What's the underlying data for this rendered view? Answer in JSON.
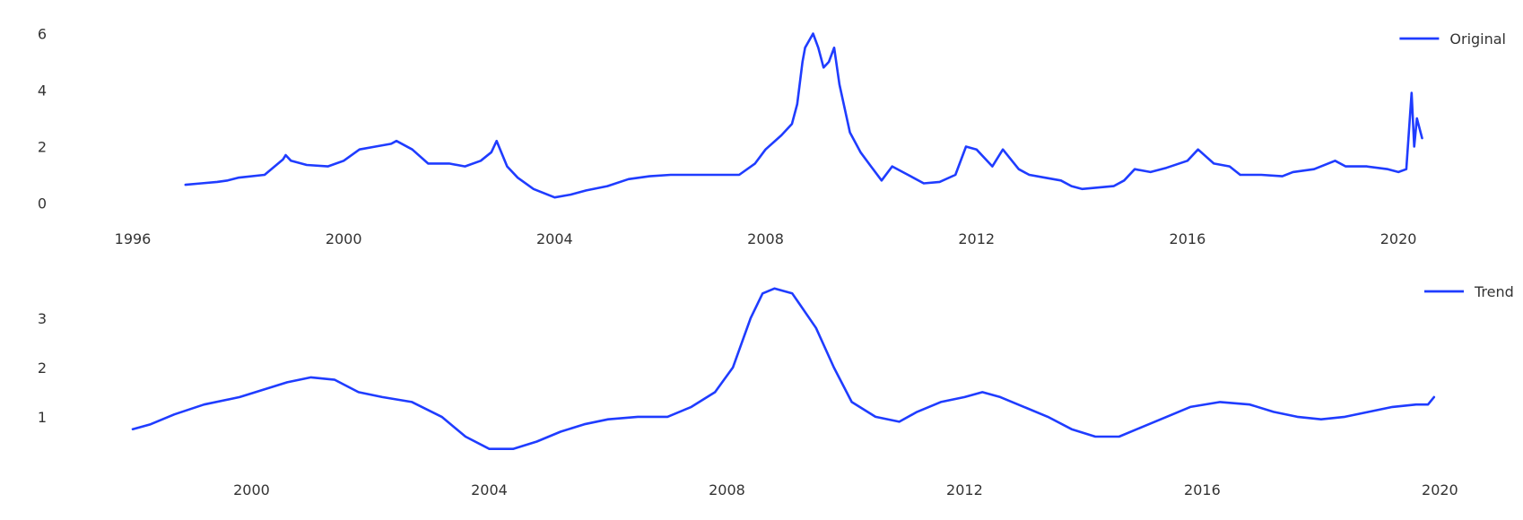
{
  "chart_data": [
    {
      "type": "line",
      "xlim": [
        1996,
        2020.9
      ],
      "ylim": [
        -0.3,
        6.3
      ],
      "x_ticks": [
        "1996",
        "2000",
        "2004",
        "2008",
        "2012",
        "2016",
        "2020"
      ],
      "y_ticks": [
        "0",
        "2",
        "4",
        "6"
      ],
      "grid": false,
      "legend_position": "top-right",
      "color": "#1f3cff",
      "series": [
        {
          "name": "Original",
          "x": [
            1997.0,
            1997.3,
            1997.6,
            1997.8,
            1998.0,
            1998.5,
            1998.85,
            1998.9,
            1999.0,
            1999.3,
            1999.7,
            2000.0,
            2000.3,
            2000.6,
            2000.9,
            2001.0,
            2001.3,
            2001.6,
            2002.0,
            2002.3,
            2002.6,
            2002.8,
            2002.9,
            2003.1,
            2003.3,
            2003.6,
            2004.0,
            2004.3,
            2004.6,
            2005.0,
            2005.4,
            2005.8,
            2006.2,
            2006.6,
            2007.0,
            2007.5,
            2007.8,
            2008.0,
            2008.3,
            2008.5,
            2008.6,
            2008.7,
            2008.75,
            2008.9,
            2009.0,
            2009.1,
            2009.2,
            2009.3,
            2009.4,
            2009.6,
            2009.8,
            2010.0,
            2010.2,
            2010.4,
            2010.7,
            2011.0,
            2011.3,
            2011.6,
            2011.8,
            2012.0,
            2012.3,
            2012.5,
            2012.8,
            2013.0,
            2013.3,
            2013.6,
            2013.8,
            2014.0,
            2014.3,
            2014.6,
            2014.8,
            2015.0,
            2015.3,
            2015.6,
            2016.0,
            2016.2,
            2016.5,
            2016.8,
            2017.0,
            2017.4,
            2017.8,
            2018.0,
            2018.4,
            2018.8,
            2019.0,
            2019.4,
            2019.8,
            2020.0,
            2020.15,
            2020.25,
            2020.3,
            2020.35,
            2020.45
          ],
          "values": [
            0.65,
            0.7,
            0.75,
            0.8,
            0.9,
            1.0,
            1.55,
            1.7,
            1.5,
            1.35,
            1.3,
            1.5,
            1.9,
            2.0,
            2.1,
            2.2,
            1.9,
            1.4,
            1.4,
            1.3,
            1.5,
            1.8,
            2.2,
            1.3,
            0.9,
            0.5,
            0.2,
            0.3,
            0.45,
            0.6,
            0.85,
            0.95,
            1.0,
            1.0,
            1.0,
            1.0,
            1.4,
            1.9,
            2.4,
            2.8,
            3.5,
            5.0,
            5.5,
            6.0,
            5.5,
            4.8,
            5.0,
            5.5,
            4.2,
            2.5,
            1.8,
            1.3,
            0.8,
            1.3,
            1.0,
            0.7,
            0.75,
            1.0,
            2.0,
            1.9,
            1.3,
            1.9,
            1.2,
            1.0,
            0.9,
            0.8,
            0.6,
            0.5,
            0.55,
            0.6,
            0.8,
            1.2,
            1.1,
            1.25,
            1.5,
            1.9,
            1.4,
            1.3,
            1.0,
            1.0,
            0.95,
            1.1,
            1.2,
            1.5,
            1.3,
            1.3,
            1.2,
            1.1,
            1.2,
            3.9,
            2.0,
            3.0,
            2.3
          ]
        }
      ]
    },
    {
      "type": "line",
      "xlim": [
        1998.0,
        2020.1
      ],
      "ylim": [
        0.0,
        3.85
      ],
      "x_ticks": [
        "2000",
        "2004",
        "2008",
        "2012",
        "2016",
        "2020"
      ],
      "y_ticks": [
        "1",
        "2",
        "3"
      ],
      "grid": false,
      "legend_position": "top-right",
      "color": "#1f3cff",
      "series": [
        {
          "name": "Trend",
          "x": [
            1998.0,
            1998.3,
            1998.7,
            1999.2,
            1999.8,
            2000.2,
            2000.6,
            2001.0,
            2001.4,
            2001.8,
            2002.2,
            2002.7,
            2003.2,
            2003.6,
            2004.0,
            2004.4,
            2004.8,
            2005.2,
            2005.6,
            2006.0,
            2006.5,
            2007.0,
            2007.4,
            2007.8,
            2008.1,
            2008.4,
            2008.6,
            2008.8,
            2009.1,
            2009.5,
            2009.8,
            2010.1,
            2010.5,
            2010.9,
            2011.2,
            2011.6,
            2012.0,
            2012.3,
            2012.6,
            2013.0,
            2013.4,
            2013.8,
            2014.2,
            2014.6,
            2015.0,
            2015.4,
            2015.8,
            2016.3,
            2016.8,
            2017.2,
            2017.6,
            2018.0,
            2018.4,
            2018.8,
            2019.2,
            2019.6,
            2019.8,
            2019.9
          ],
          "values": [
            0.75,
            0.85,
            1.05,
            1.25,
            1.4,
            1.55,
            1.7,
            1.8,
            1.75,
            1.5,
            1.4,
            1.3,
            1.0,
            0.6,
            0.35,
            0.35,
            0.5,
            0.7,
            0.85,
            0.95,
            1.0,
            1.0,
            1.2,
            1.5,
            2.0,
            3.0,
            3.5,
            3.6,
            3.5,
            2.8,
            2.0,
            1.3,
            1.0,
            0.9,
            1.1,
            1.3,
            1.4,
            1.5,
            1.4,
            1.2,
            1.0,
            0.75,
            0.6,
            0.6,
            0.8,
            1.0,
            1.2,
            1.3,
            1.25,
            1.1,
            1.0,
            0.95,
            1.0,
            1.1,
            1.2,
            1.25,
            1.25,
            1.4
          ]
        }
      ]
    }
  ]
}
